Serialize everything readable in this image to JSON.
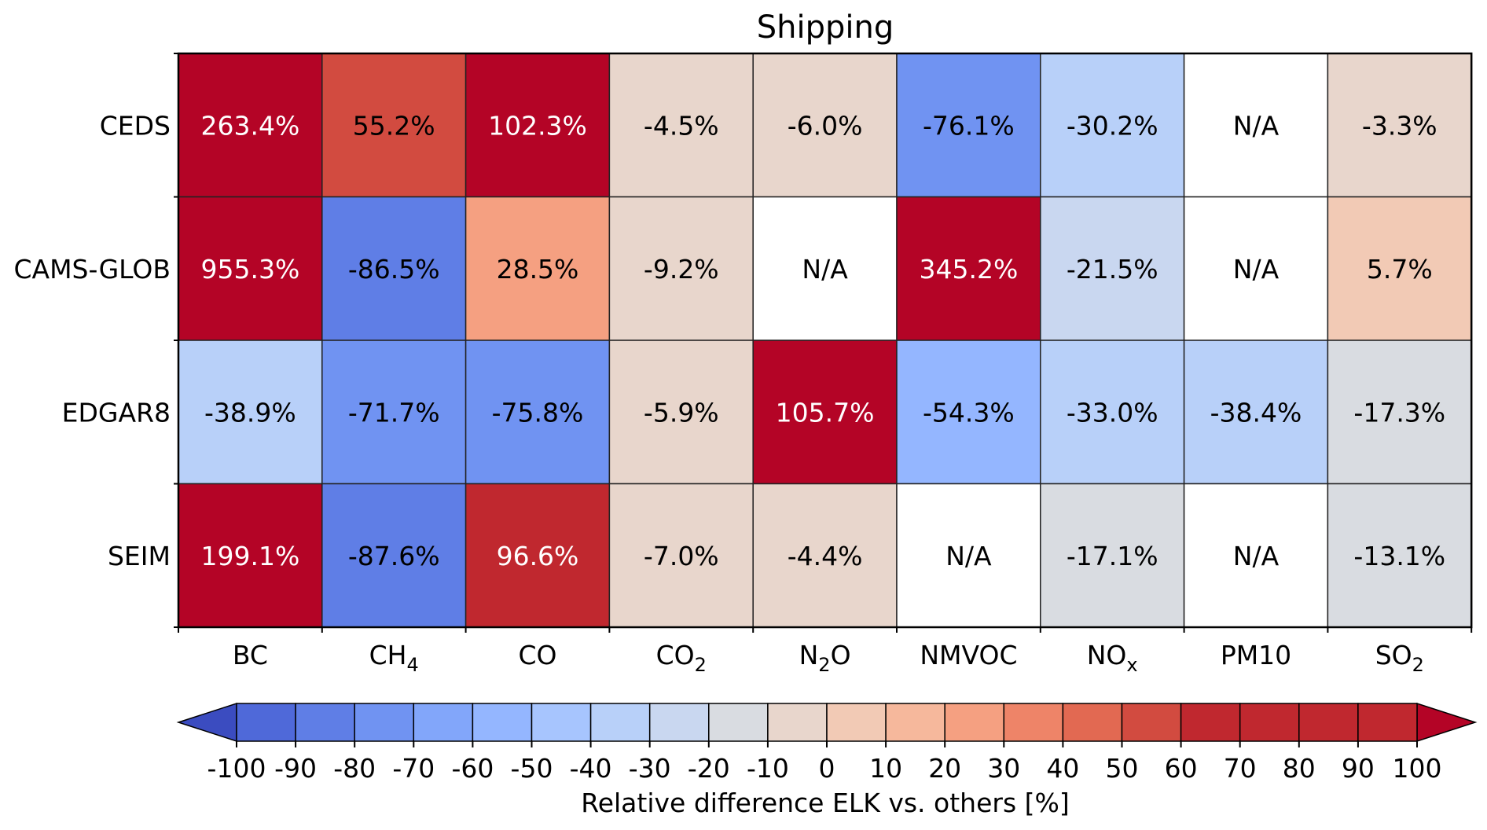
{
  "chart_data": {
    "type": "heatmap",
    "title": "Shipping",
    "rows": [
      "CEDS",
      "CAMS-GLOB",
      "EDGAR8",
      "SEIM"
    ],
    "columns": [
      {
        "base": "BC",
        "sub": ""
      },
      {
        "base": "CH",
        "sub": "4"
      },
      {
        "base": "CO",
        "sub": ""
      },
      {
        "base": "CO",
        "sub": "2"
      },
      {
        "base": "N",
        "sub": "2",
        "tail": "O"
      },
      {
        "base": "NMVOC",
        "sub": ""
      },
      {
        "base": "NO",
        "sub": "x"
      },
      {
        "base": "PM10",
        "sub": ""
      },
      {
        "base": "SO",
        "sub": "2"
      }
    ],
    "values": [
      [
        263.4,
        55.2,
        102.3,
        -4.5,
        -6.0,
        -76.1,
        -30.2,
        null,
        -3.3
      ],
      [
        955.3,
        -86.5,
        28.5,
        -9.2,
        null,
        345.2,
        -21.5,
        null,
        5.7
      ],
      [
        -38.9,
        -71.7,
        -75.8,
        -5.9,
        105.7,
        -54.3,
        -33.0,
        -38.4,
        -17.3
      ],
      [
        199.1,
        -87.6,
        96.6,
        -7.0,
        -4.4,
        null,
        -17.1,
        null,
        -13.1
      ]
    ],
    "cell_labels": [
      [
        "263.4%",
        "55.2%",
        "102.3%",
        "-4.5%",
        "-6.0%",
        "-76.1%",
        "-30.2%",
        "N/A",
        "-3.3%"
      ],
      [
        "955.3%",
        "-86.5%",
        "28.5%",
        "-9.2%",
        "N/A",
        "345.2%",
        "-21.5%",
        "N/A",
        "5.7%"
      ],
      [
        "-38.9%",
        "-71.7%",
        "-75.8%",
        "-5.9%",
        "105.7%",
        "-54.3%",
        "-33.0%",
        "-38.4%",
        "-17.3%"
      ],
      [
        "199.1%",
        "-87.6%",
        "96.6%",
        "-7.0%",
        "-4.4%",
        "N/A",
        "-17.1%",
        "N/A",
        "-13.1%"
      ]
    ],
    "colorbar": {
      "label": "Relative difference ELK vs. others [%]",
      "min": -100,
      "max": 100,
      "step": 10,
      "extend": "both",
      "ticks": [
        "-100",
        "-90",
        "-80",
        "-70",
        "-60",
        "-50",
        "-40",
        "-30",
        "-20",
        "-10",
        "0",
        "10",
        "20",
        "30",
        "40",
        "50",
        "60",
        "70",
        "80",
        "90",
        "100"
      ],
      "colors": [
        "#4f69d9",
        "#5f7ee6",
        "#7093f2",
        "#82a6fa",
        "#94b6ff",
        "#a7c5fe",
        "#b8d0f9",
        "#c9d7f0",
        "#d9dce1",
        "#e8d6cc",
        "#f2cab5",
        "#f6b89c",
        "#f5a081",
        "#ee8468",
        "#e26952",
        "#d24b40",
        "#c0282f"
      ],
      "under_color": "#3b4cc0",
      "over_color": "#b40426",
      "na_color": "#ffffff"
    }
  }
}
